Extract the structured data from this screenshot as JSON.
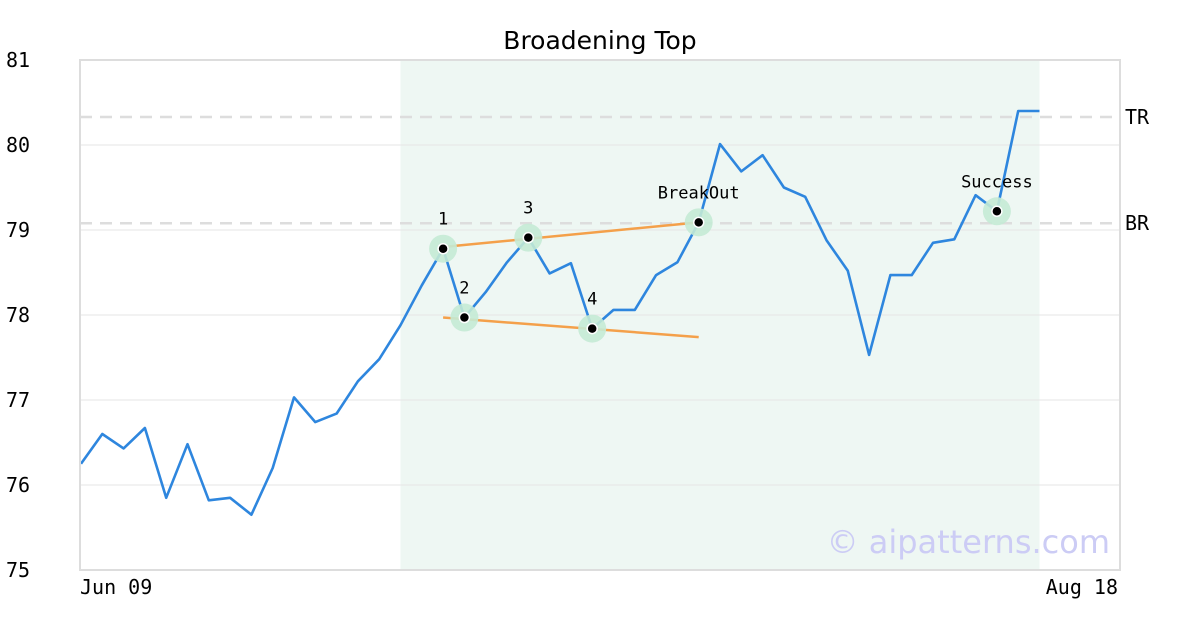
{
  "chart_data": {
    "type": "line",
    "title": "Broadening Top",
    "ylim": [
      75,
      81
    ],
    "yticks": [
      "75",
      "76",
      "77",
      "78",
      "79",
      "80",
      "81"
    ],
    "xtick_labels": [
      "Jun 09",
      "Aug 18"
    ],
    "grid": "horizontal",
    "series": [
      {
        "color": "#2e86de",
        "values": [
          76.25,
          76.6,
          76.43,
          76.67,
          75.85,
          76.48,
          75.82,
          75.85,
          75.65,
          76.2,
          77.03,
          76.74,
          76.84,
          77.22,
          77.48,
          77.88,
          78.35,
          78.78,
          77.97,
          78.27,
          78.62,
          78.91,
          78.49,
          78.61,
          77.84,
          78.06,
          78.06,
          78.47,
          78.62,
          79.09,
          80.01,
          79.69,
          79.88,
          79.5,
          79.39,
          78.88,
          78.52,
          77.53,
          78.47,
          78.47,
          78.85,
          78.89,
          79.41,
          79.22,
          80.4,
          80.4
        ]
      }
    ],
    "highlight_range": [
      15,
      45
    ],
    "levels": [
      {
        "label": "TR",
        "value": 80.33
      },
      {
        "label": "BR",
        "value": 79.08
      }
    ],
    "trendlines": [
      {
        "from": [
          17,
          78.8
        ],
        "to": [
          29,
          79.09
        ]
      },
      {
        "from": [
          17,
          77.97
        ],
        "to": [
          29,
          77.74
        ]
      }
    ],
    "points": [
      {
        "label": "1",
        "index": 17,
        "value": 78.78
      },
      {
        "label": "2",
        "index": 18,
        "value": 77.97
      },
      {
        "label": "3",
        "index": 21,
        "value": 78.91
      },
      {
        "label": "4",
        "index": 24,
        "value": 77.84
      },
      {
        "label": "BreakOut",
        "index": 29,
        "value": 79.09
      },
      {
        "label": "Success",
        "index": 43,
        "value": 79.22
      }
    ],
    "colors": {
      "line": "#2e86de",
      "trendline": "#f4a04a",
      "highlight": "#eef7f3",
      "marker_halo": "#c4ead5",
      "level_line": "#dddddd",
      "grid": "#e6e6e6",
      "frame": "#dddddd"
    },
    "watermark": "© aipatterns.com"
  }
}
